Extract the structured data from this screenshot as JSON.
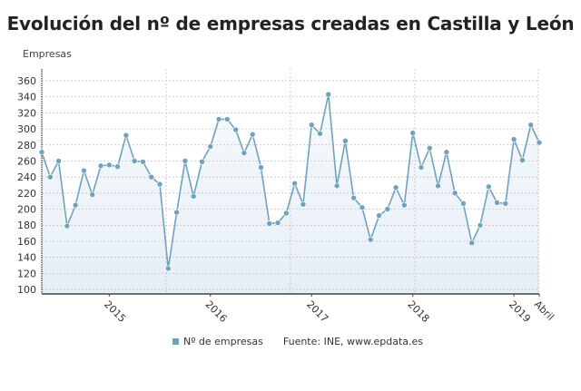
{
  "title": "Evolución del nº de empresas creadas en Castilla y León",
  "legend": {
    "series": "Nº de empresas",
    "source": "Fuente: INE, www.epdata.es"
  },
  "colors": {
    "line": "#6fa3bd",
    "fill": "#e6eef6",
    "grid": "#bbbbbb"
  },
  "chart_data": {
    "type": "area",
    "title": "Evolución del nº de empresas creadas en Castilla y León",
    "ylabel": "Empresas",
    "xlabel": "",
    "ylim": [
      100,
      360
    ],
    "yticks": [
      100,
      120,
      140,
      160,
      180,
      200,
      220,
      240,
      260,
      280,
      300,
      320,
      340,
      360
    ],
    "xtick_labels": [
      {
        "label": "2015",
        "index": 8
      },
      {
        "label": "2016",
        "index": 20
      },
      {
        "label": "2017",
        "index": 32
      },
      {
        "label": "2018",
        "index": 44
      },
      {
        "label": "2019",
        "index": 56
      },
      {
        "label": "Abril",
        "index": 59
      }
    ],
    "grid": true,
    "legend": "bottom",
    "x_start": "2014-05",
    "x_end": "2019-04",
    "series": [
      {
        "name": "Nº de empresas",
        "values": [
          271,
          240,
          260,
          179,
          205,
          248,
          218,
          254,
          255,
          253,
          292,
          260,
          259,
          240,
          231,
          126,
          196,
          260,
          216,
          259,
          278,
          312,
          312,
          299,
          270,
          293,
          252,
          182,
          183,
          195,
          232,
          206,
          305,
          294,
          343,
          229,
          285,
          214,
          202,
          162,
          192,
          200,
          227,
          205,
          295,
          252,
          276,
          229,
          271,
          220,
          207,
          158,
          180,
          228,
          208,
          207,
          287,
          261,
          305,
          283
        ]
      }
    ]
  }
}
